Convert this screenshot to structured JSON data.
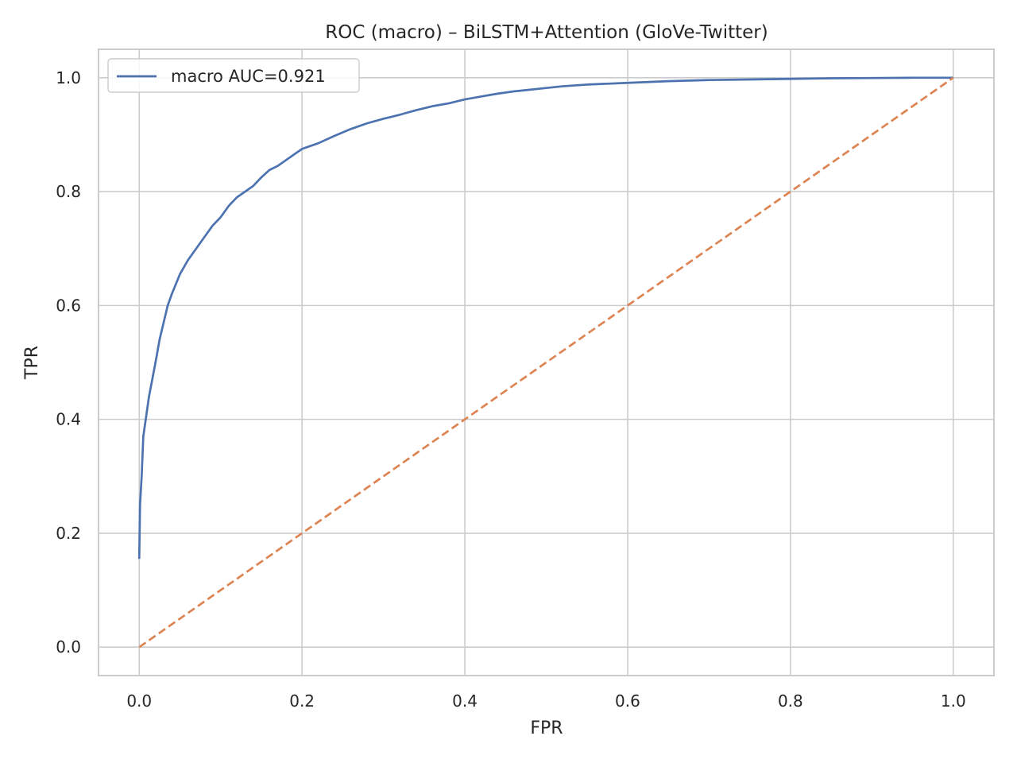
{
  "chart_data": {
    "type": "line",
    "title": "ROC (macro) – BiLSTM+Attention (GloVe-Twitter)",
    "xlabel": "FPR",
    "ylabel": "TPR",
    "xlim": [
      -0.05,
      1.05
    ],
    "ylim": [
      -0.05,
      1.05
    ],
    "xticks": [
      0.0,
      0.2,
      0.4,
      0.6,
      0.8,
      1.0
    ],
    "yticks": [
      0.0,
      0.2,
      0.4,
      0.6,
      0.8,
      1.0
    ],
    "xtick_labels": [
      "0.0",
      "0.2",
      "0.4",
      "0.6",
      "0.8",
      "1.0"
    ],
    "ytick_labels": [
      "0.0",
      "0.2",
      "0.4",
      "0.6",
      "0.8",
      "1.0"
    ],
    "grid": true,
    "legend_position": "top-left",
    "series": [
      {
        "name": "macro AUC=0.921",
        "color": "#4c72b0",
        "style": "solid",
        "x": [
          0.0,
          0.001,
          0.003,
          0.005,
          0.008,
          0.012,
          0.016,
          0.02,
          0.025,
          0.03,
          0.035,
          0.04,
          0.05,
          0.06,
          0.07,
          0.08,
          0.09,
          0.1,
          0.11,
          0.12,
          0.13,
          0.14,
          0.15,
          0.16,
          0.17,
          0.18,
          0.19,
          0.2,
          0.22,
          0.24,
          0.26,
          0.28,
          0.3,
          0.32,
          0.34,
          0.36,
          0.38,
          0.4,
          0.42,
          0.44,
          0.46,
          0.48,
          0.5,
          0.52,
          0.55,
          0.6,
          0.65,
          0.7,
          0.75,
          0.8,
          0.85,
          0.9,
          0.95,
          1.0
        ],
        "y": [
          0.155,
          0.25,
          0.3,
          0.37,
          0.4,
          0.44,
          0.47,
          0.5,
          0.54,
          0.57,
          0.6,
          0.62,
          0.655,
          0.68,
          0.7,
          0.72,
          0.74,
          0.755,
          0.775,
          0.79,
          0.8,
          0.81,
          0.825,
          0.838,
          0.845,
          0.855,
          0.865,
          0.875,
          0.885,
          0.898,
          0.91,
          0.92,
          0.928,
          0.935,
          0.943,
          0.95,
          0.955,
          0.962,
          0.967,
          0.972,
          0.976,
          0.979,
          0.982,
          0.985,
          0.988,
          0.991,
          0.994,
          0.996,
          0.997,
          0.998,
          0.999,
          0.9995,
          1.0,
          1.0
        ]
      },
      {
        "name": "",
        "color": "#dd8452",
        "style": "dashed",
        "x": [
          0.0,
          1.0
        ],
        "y": [
          0.0,
          1.0
        ]
      }
    ]
  }
}
